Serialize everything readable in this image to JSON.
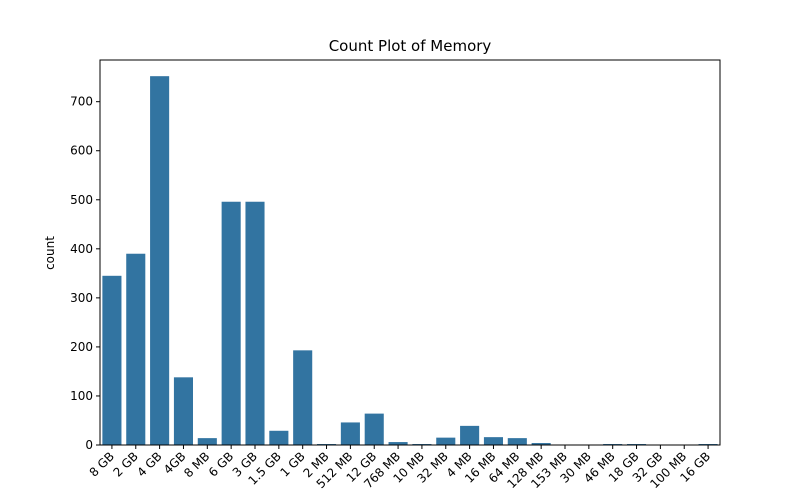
{
  "chart_data": {
    "type": "bar",
    "title": "Count Plot of Memory",
    "xlabel": "",
    "ylabel": "count",
    "categories": [
      "8 GB",
      "2 GB",
      "4 GB",
      "4GB",
      "8 MB",
      "6 GB",
      "3 GB",
      "1.5 GB",
      "1 GB",
      "2 MB",
      "512 MB",
      "12 GB",
      "768 MB",
      "10 MB",
      "32 MB",
      "4 MB",
      "16 MB",
      "64 MB",
      "128 MB",
      "153 MB",
      "30 MB",
      "46 MB",
      "18 GB",
      "32 GB",
      "100 MB",
      "16 GB"
    ],
    "values": [
      345,
      390,
      752,
      138,
      14,
      496,
      496,
      29,
      193,
      2,
      46,
      64,
      6,
      2,
      15,
      39,
      16,
      14,
      4,
      1,
      1,
      2,
      2,
      1,
      1,
      2
    ],
    "ylim": [
      0,
      785
    ],
    "yticks": [
      0,
      100,
      200,
      300,
      400,
      500,
      600,
      700
    ],
    "bar_color": "#3274a1",
    "grid": false,
    "legend": "none"
  }
}
